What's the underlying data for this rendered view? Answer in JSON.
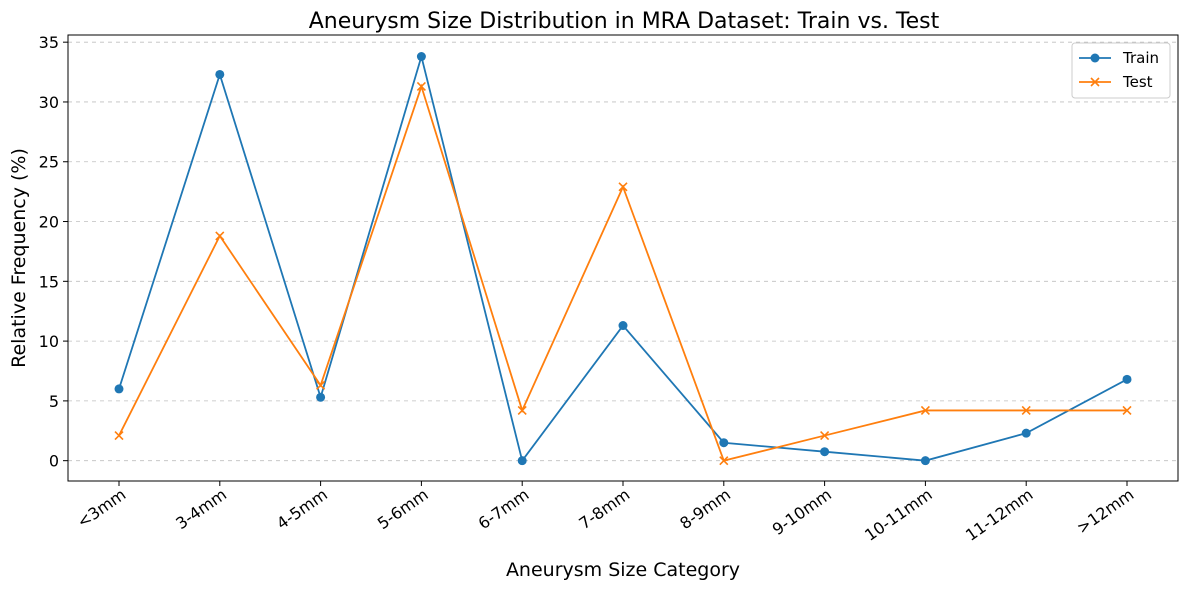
{
  "chart_data": {
    "type": "line",
    "title": "Aneurysm Size Distribution in MRA Dataset: Train vs. Test",
    "xlabel": "Aneurysm Size Category",
    "ylabel": "Relative Frequency (%)",
    "categories": [
      "<3mm",
      "3-4mm",
      "4-5mm",
      "5-6mm",
      "6-7mm",
      "7-8mm",
      "8-9mm",
      "9-10mm",
      "10-11mm",
      "11-12mm",
      ">12mm"
    ],
    "ylim": [
      -1.7,
      35.6
    ],
    "yticks": [
      0,
      5,
      10,
      15,
      20,
      25,
      30,
      35
    ],
    "grid": "y-dashed",
    "legend_position": "top-right",
    "series": [
      {
        "name": "Train",
        "color": "#1f77b4",
        "marker": "circle",
        "values": [
          6.0,
          32.3,
          5.3,
          33.8,
          0.0,
          11.3,
          1.5,
          0.75,
          0.0,
          2.3,
          6.8
        ]
      },
      {
        "name": "Test",
        "color": "#ff7f0e",
        "marker": "x",
        "values": [
          2.1,
          18.8,
          6.3,
          31.3,
          4.2,
          22.9,
          0.0,
          2.1,
          4.2,
          4.2,
          4.2
        ]
      }
    ]
  }
}
